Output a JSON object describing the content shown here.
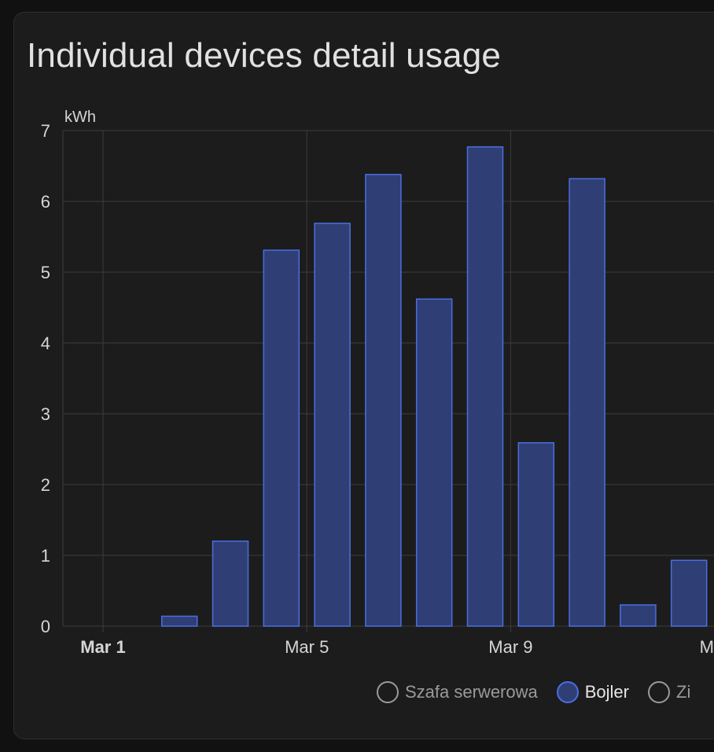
{
  "card": {
    "title": "Individual devices detail usage"
  },
  "chart_data": {
    "type": "bar",
    "unit": "kWh",
    "ylim": [
      0,
      7
    ],
    "yticks": [
      0,
      1,
      2,
      3,
      4,
      5,
      6,
      7
    ],
    "x_tick_labels": [
      {
        "day": 1,
        "label": "Mar 1",
        "bold": true
      },
      {
        "day": 5,
        "label": "Mar 5",
        "bold": false
      },
      {
        "day": 9,
        "label": "Mar 9",
        "bold": false
      },
      {
        "day": 13,
        "label": "Mar",
        "bold": false
      }
    ],
    "days": [
      1,
      2,
      3,
      4,
      5,
      6,
      7,
      8,
      9,
      10,
      11,
      12,
      13
    ],
    "series": [
      {
        "name": "Bojler",
        "values": [
          0,
          0.14,
          1.2,
          5.31,
          5.69,
          6.38,
          4.62,
          6.77,
          2.59,
          6.32,
          0.3,
          0.93,
          null
        ]
      }
    ],
    "grid": true,
    "legend_position": "bottom"
  },
  "legend": {
    "items": [
      {
        "label": "Szafa serwerowa",
        "active": false
      },
      {
        "label": "Bojler",
        "active": true
      },
      {
        "label": "Zi",
        "active": false
      }
    ]
  },
  "colors": {
    "bar_fill": "#2f3f75",
    "bar_stroke": "#4a6ee0",
    "grid": "#3c3c3c",
    "axis_text": "#d6d6d6",
    "legend_inactive": "#9a9a9a"
  }
}
